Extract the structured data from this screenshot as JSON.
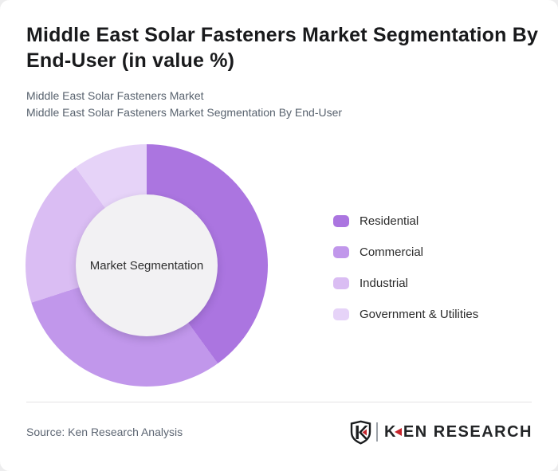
{
  "title_lines": [
    "Middle East Solar Fasteners Market Segmentation By",
    "End-User (in value %)"
  ],
  "subtitles": [
    "Middle East Solar Fasteners Market",
    "Middle East Solar Fasteners Market Segmentation By End-User"
  ],
  "chart_data": {
    "type": "pie",
    "subtype": "donut",
    "title": "Middle East Solar Fasteners Market Segmentation By End-User (in value %)",
    "unit": "value %",
    "start_angle_deg": 0,
    "direction": "clockwise",
    "center_label": "Market Segmentation",
    "values_shown_on_chart": false,
    "legend_position": "right",
    "hole_color": "#f2f1f3",
    "segments": [
      {
        "label": "Residential",
        "value": 40,
        "color": "#ab75e0"
      },
      {
        "label": "Commercial",
        "value": 30,
        "color": "#c197eb"
      },
      {
        "label": "Industrial",
        "value": 20,
        "color": "#dabdf3"
      },
      {
        "label": "Government & Utilities",
        "value": 10,
        "color": "#e6d3f8"
      }
    ]
  },
  "footer": {
    "source": "Source: Ken Research Analysis",
    "logo": {
      "shield_letter": "K",
      "brand_k": "K",
      "brand_rest": "EN RESEARCH",
      "accent_color": "#c5242b",
      "text_color": "#232527"
    }
  }
}
